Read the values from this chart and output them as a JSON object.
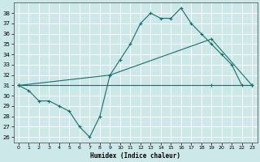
{
  "xlabel": "Humidex (Indice chaleur)",
  "x_ticks": [
    0,
    1,
    2,
    3,
    4,
    5,
    6,
    7,
    8,
    9,
    10,
    11,
    12,
    13,
    14,
    15,
    16,
    17,
    18,
    19,
    20,
    21,
    22,
    23
  ],
  "xlim": [
    -0.5,
    23.5
  ],
  "ylim": [
    25.5,
    39.0
  ],
  "y_ticks": [
    26,
    27,
    28,
    29,
    30,
    31,
    32,
    33,
    34,
    35,
    36,
    37,
    38
  ],
  "bg_color": "#cde8e8",
  "grid_color": "#ffffff",
  "line_color": "#1a6e6e",
  "series1_x": [
    0,
    1,
    2,
    3,
    4,
    5,
    6,
    7,
    8,
    9,
    10,
    11,
    12,
    13,
    14,
    15,
    16,
    17,
    18,
    19,
    20,
    21,
    22,
    23
  ],
  "series1_y": [
    31.0,
    30.5,
    29.5,
    29.5,
    29.0,
    28.5,
    27.0,
    26.0,
    28.0,
    32.0,
    33.5,
    35.0,
    37.0,
    38.0,
    37.5,
    37.5,
    38.5,
    37.0,
    36.0,
    35.0,
    34.0,
    33.0,
    31.0,
    31.0
  ],
  "series2_x": [
    0,
    9,
    19,
    23
  ],
  "series2_y": [
    31.0,
    32.0,
    35.5,
    31.0
  ],
  "series3_x": [
    0,
    19,
    23
  ],
  "series3_y": [
    31.0,
    31.0,
    31.0
  ]
}
